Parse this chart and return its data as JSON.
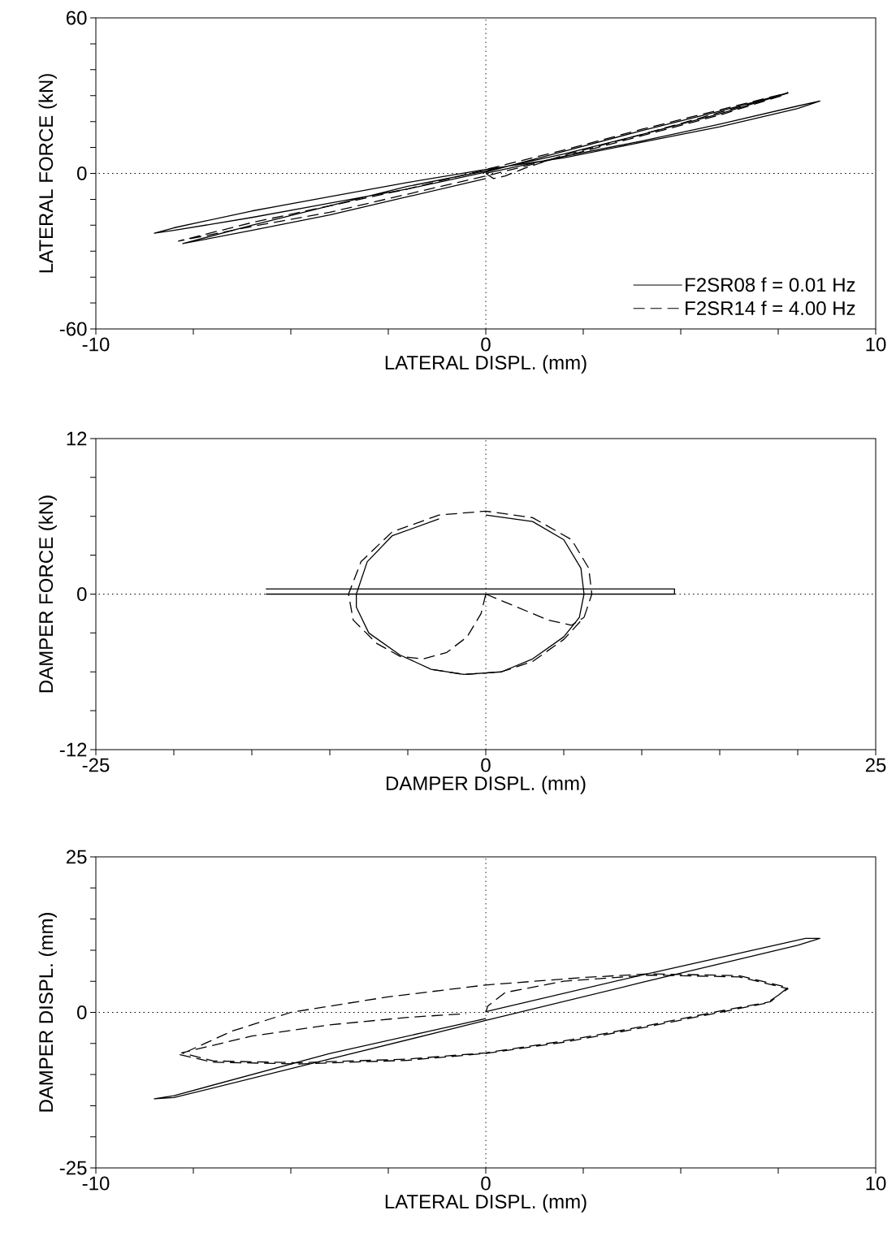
{
  "chart_data": [
    {
      "type": "line",
      "xlabel": "LATERAL DISPL. (mm)",
      "ylabel": "LATERAL FORCE (kN)",
      "xlim": [
        -10,
        10
      ],
      "ylim": [
        -60,
        60
      ],
      "xticks": [
        -10,
        {
          "value": -7.5,
          "label": null
        },
        {
          "value": -5,
          "label": null
        },
        {
          "value": -2.5,
          "label": null
        },
        0,
        {
          "value": 2.5,
          "label": null
        },
        {
          "value": 5,
          "label": null
        },
        {
          "value": 7.5,
          "label": null
        },
        10
      ],
      "yticks": [
        -60,
        {
          "value": -50,
          "label": null
        },
        {
          "value": -40,
          "label": null
        },
        {
          "value": -30,
          "label": null
        },
        {
          "value": -20,
          "label": null
        },
        {
          "value": -10,
          "label": null
        },
        0,
        {
          "value": 10,
          "label": null
        },
        {
          "value": 20,
          "label": null
        },
        {
          "value": 30,
          "label": null
        },
        {
          "value": 40,
          "label": null
        },
        {
          "value": 50,
          "label": null
        },
        60
      ],
      "grid": false,
      "legend": "bottom right",
      "ref_lines": [
        {
          "axis": "x",
          "value": 0,
          "color": "#000000",
          "line_style": "dotted"
        },
        {
          "axis": "y",
          "value": 0,
          "color": "#000000",
          "line_style": "dotted"
        }
      ],
      "series": [
        {
          "name": "F2SR08  f = 0.01 Hz",
          "color": "#000000",
          "line_style": "solid",
          "x": [
            0,
            2,
            4,
            6,
            8,
            8.57,
            8,
            6,
            4,
            2,
            0,
            -2,
            -4,
            -6,
            -8,
            -8.5,
            -8,
            -6,
            -4,
            -2,
            0,
            2,
            4,
            6,
            7.75,
            6,
            4,
            2,
            0,
            -2,
            -4,
            -6,
            -7.77,
            -6,
            -4,
            -2,
            0
          ],
          "values": [
            0,
            6.5,
            12.5,
            19,
            26,
            27.9,
            25,
            18,
            12,
            6,
            1.5,
            -3.5,
            -9,
            -14.5,
            -21,
            -23.1,
            -22,
            -17,
            -11.5,
            -6,
            0.5,
            8.5,
            16.5,
            24,
            31,
            23,
            15,
            7.5,
            1,
            -5,
            -12.5,
            -20,
            -27.1,
            -22,
            -16,
            -9,
            -2
          ]
        },
        {
          "name": "F2SR14  f = 4.00 Hz",
          "color": "#000000",
          "line_style": "dashed",
          "x": [
            0,
            0.2,
            0.5,
            1,
            2,
            4,
            6,
            7.75,
            6,
            4,
            2,
            0,
            -2,
            -4,
            -6,
            -7.88,
            -6,
            -4,
            -2,
            0,
            2,
            4,
            6,
            7.7
          ],
          "values": [
            0,
            -2,
            -1,
            2,
            7,
            15,
            23.5,
            31.1,
            24.5,
            17,
            9,
            1.5,
            -6,
            -12.5,
            -19,
            -26.1,
            -20.5,
            -15,
            -8,
            -1,
            6.5,
            14.5,
            22.5,
            30.5
          ]
        }
      ]
    },
    {
      "type": "line",
      "xlabel": "DAMPER DISPL. (mm)",
      "ylabel": "DAMPER FORCE (kN)",
      "xlim": [
        -25,
        25
      ],
      "ylim": [
        -12,
        12
      ],
      "xticks": [
        -25,
        {
          "value": -20,
          "label": null
        },
        {
          "value": -15,
          "label": null
        },
        {
          "value": -10,
          "label": null
        },
        {
          "value": -5,
          "label": null
        },
        0,
        {
          "value": 5,
          "label": null
        },
        {
          "value": 10,
          "label": null
        },
        {
          "value": 15,
          "label": null
        },
        {
          "value": 20,
          "label": null
        },
        25
      ],
      "yticks": [
        -12,
        {
          "value": -9,
          "label": null
        },
        {
          "value": -6,
          "label": null
        },
        {
          "value": -3,
          "label": null
        },
        0,
        {
          "value": 3,
          "label": null
        },
        {
          "value": 6,
          "label": null
        },
        {
          "value": 9,
          "label": null
        },
        12
      ],
      "grid": false,
      "ref_lines": [
        {
          "axis": "x",
          "value": 0,
          "color": "#000000",
          "line_style": "dotted"
        },
        {
          "axis": "y",
          "value": 0,
          "color": "#000000",
          "line_style": "dotted"
        }
      ],
      "series": [
        {
          "color": "#000000",
          "line_style": "solid",
          "x": [
            -14.1,
            12.1,
            12.1,
            -14.1,
            null,
            0,
            3,
            5,
            6.1,
            6.3,
            6,
            5,
            3,
            1,
            -1.4,
            -3.5,
            -5.5,
            -7.5,
            -8.3,
            -8.3,
            -7.6,
            -6,
            -3
          ],
          "values": [
            0,
            0,
            0.4,
            0.4,
            null,
            6.1,
            5.6,
            4.2,
            2,
            0,
            -1.8,
            -3.3,
            -5,
            -6,
            -6.2,
            -5.8,
            -4.7,
            -3,
            -1,
            0,
            2.5,
            4.5,
            5.8
          ]
        },
        {
          "color": "#000000",
          "line_style": "dashed",
          "x": [
            0,
            -0.3,
            -1.2,
            -2.5,
            -4,
            -5.5,
            -7,
            -8.5,
            -8.8,
            -8,
            -6,
            -3,
            0,
            3,
            5.5,
            6.6,
            6.8,
            6.3,
            5,
            3,
            1,
            -1.4,
            -3.5,
            null,
            0,
            2,
            4,
            5.5,
            6.3
          ],
          "values": [
            0,
            -1.5,
            -3.3,
            -4.5,
            -5,
            -4.8,
            -3.8,
            -2,
            0,
            2.5,
            4.8,
            6.1,
            6.4,
            5.9,
            4.2,
            2,
            0,
            -1.8,
            -3.5,
            -5.2,
            -6,
            -6.2,
            -5.8,
            null,
            0,
            -1,
            -2,
            -2.4,
            -1.8
          ]
        }
      ]
    },
    {
      "type": "line",
      "xlabel": "LATERAL DISPL. (mm)",
      "ylabel": "DAMPER DISPL. (mm)",
      "xlim": [
        -10,
        10
      ],
      "ylim": [
        -25,
        25
      ],
      "xticks": [
        -10,
        {
          "value": -7.5,
          "label": null
        },
        {
          "value": -5,
          "label": null
        },
        {
          "value": -2.5,
          "label": null
        },
        0,
        {
          "value": 2.5,
          "label": null
        },
        {
          "value": 5,
          "label": null
        },
        {
          "value": 7.5,
          "label": null
        },
        10
      ],
      "yticks": [
        -25,
        {
          "value": -20,
          "label": null
        },
        {
          "value": -15,
          "label": null
        },
        {
          "value": -10,
          "label": null
        },
        {
          "value": -5,
          "label": null
        },
        0,
        {
          "value": 5,
          "label": null
        },
        {
          "value": 10,
          "label": null
        },
        {
          "value": 15,
          "label": null
        },
        {
          "value": 20,
          "label": null
        },
        25
      ],
      "grid": false,
      "ref_lines": [
        {
          "axis": "x",
          "value": 0,
          "color": "#000000",
          "line_style": "dotted"
        },
        {
          "axis": "y",
          "value": 0,
          "color": "#000000",
          "line_style": "dotted"
        }
      ],
      "series": [
        {
          "color": "#000000",
          "line_style": "solid",
          "x": [
            0,
            4,
            8.2,
            8.57,
            8,
            4,
            0,
            -4,
            -8,
            -8.5,
            -8,
            -4,
            0
          ],
          "values": [
            0.1,
            6,
            11.9,
            11.9,
            10.8,
            4.8,
            -1.3,
            -7.5,
            -13.7,
            -13.9,
            -13.4,
            -6.6,
            -1
          ]
        },
        {
          "color": "#000000",
          "line_style": "dashed",
          "x": [
            0,
            0.05,
            0.5,
            2,
            4.2,
            6.5,
            7.75,
            7.2,
            6,
            4,
            2,
            0,
            -2,
            -4.8,
            -7,
            -7.84,
            -6.5,
            -5,
            -2.5,
            0,
            2.5,
            4.2,
            6.5,
            7.75,
            7.3,
            6,
            4,
            2,
            0,
            -2,
            -4.8,
            -7,
            -7.8,
            -6,
            -4,
            -2,
            -0.5
          ],
          "values": [
            0,
            1,
            3.2,
            5,
            6,
            5.7,
            3.8,
            1.5,
            0,
            -2.5,
            -4.8,
            -6.6,
            -7.7,
            -8.3,
            -8,
            -6.8,
            -3,
            0,
            2.5,
            4.4,
            5.6,
            6.2,
            5.9,
            4,
            1.7,
            0.2,
            -2.3,
            -4.6,
            -6.5,
            -7.5,
            -8.1,
            -7.8,
            -6.5,
            -3.8,
            -2,
            -0.8,
            -0.2
          ]
        }
      ]
    }
  ]
}
